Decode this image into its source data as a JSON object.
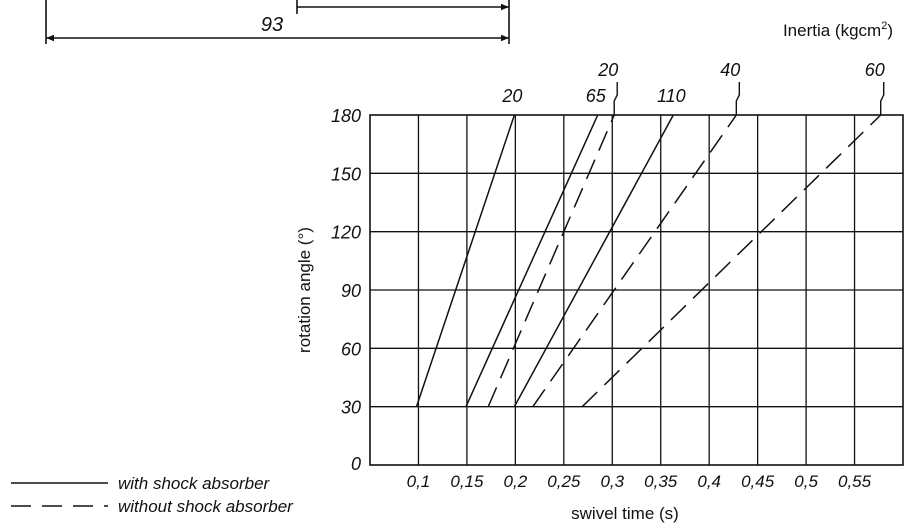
{
  "dimension": {
    "value": "93"
  },
  "chart_data": {
    "type": "line",
    "title": "",
    "xlabel": "swivel time (s)",
    "ylabel": "rotation angle (°)",
    "inertia_label": "Inertia (kgcm",
    "inertia_sup": "2",
    "inertia_close": ")",
    "xlim": [
      0.05,
      0.6
    ],
    "ylim": [
      0,
      180
    ],
    "x_ticks": [
      0.1,
      0.15,
      0.2,
      0.25,
      0.3,
      0.35,
      0.4,
      0.45,
      0.5,
      0.55
    ],
    "x_tick_labels": [
      "0,1",
      "0,15",
      "0,2",
      "0,25",
      "0,3",
      "0,35",
      "0,4",
      "0,45",
      "0,5",
      "0,55"
    ],
    "y_ticks": [
      0,
      30,
      60,
      90,
      120,
      150,
      180
    ],
    "y_tick_labels": [
      "0",
      "30",
      "60",
      "90",
      "120",
      "150",
      "180"
    ],
    "grid": true,
    "legend": [
      {
        "label": "with shock absorber",
        "style": "solid"
      },
      {
        "label": "without shock absorber",
        "style": "dashed"
      }
    ],
    "series": [
      {
        "name": "20",
        "style": "solid",
        "x": [
          0.098,
          0.199
        ],
        "y": [
          30,
          180
        ],
        "label_row": "lower"
      },
      {
        "name": "65",
        "style": "solid",
        "x": [
          0.149,
          0.285
        ],
        "y": [
          30,
          180
        ],
        "label_row": "lower"
      },
      {
        "name": "20",
        "style": "dashed",
        "x": [
          0.172,
          0.302
        ],
        "y": [
          30,
          180
        ],
        "label_row": "upper"
      },
      {
        "name": "110",
        "style": "solid",
        "x": [
          0.199,
          0.363
        ],
        "y": [
          30,
          180
        ],
        "label_row": "lower"
      },
      {
        "name": "40",
        "style": "dashed",
        "x": [
          0.218,
          0.428
        ],
        "y": [
          30,
          180
        ],
        "label_row": "upper"
      },
      {
        "name": "60",
        "style": "dashed",
        "x": [
          0.269,
          0.577
        ],
        "y": [
          30,
          180
        ],
        "label_row": "upper"
      }
    ]
  }
}
